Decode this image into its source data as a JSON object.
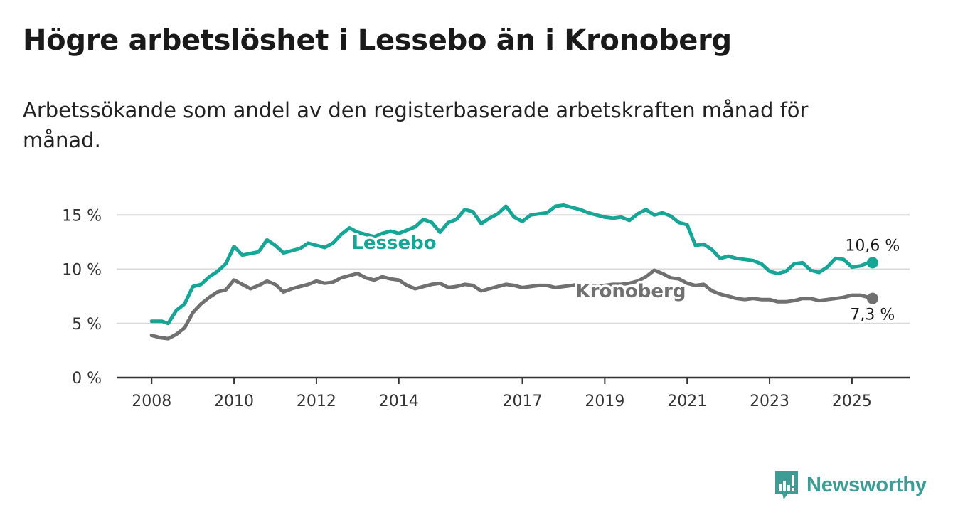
{
  "header": {
    "title": "Högre arbetslöshet i Lessebo än i Kronoberg",
    "subtitle": "Arbetssökande som andel av den registerbaserade arbetskraften månad för månad."
  },
  "brand": {
    "name": "Newsworthy",
    "logo_icon": "bar-chart-icon",
    "color": "#3d9c93"
  },
  "chart_data": {
    "type": "line",
    "y_ticks": [
      "0 %",
      "5 %",
      "10 %",
      "15 %"
    ],
    "y_tick_values": [
      0,
      5,
      10,
      15
    ],
    "ylim": [
      0,
      16
    ],
    "x_ticks": [
      "2008",
      "2010",
      "2012",
      "2014",
      "2017",
      "2019",
      "2021",
      "2023",
      "2025"
    ],
    "x_tick_values": [
      2008,
      2010,
      2012,
      2014,
      2017,
      2019,
      2021,
      2023,
      2025
    ],
    "xlim": [
      2007.15,
      2026.4
    ],
    "grid": true,
    "series": [
      {
        "name": "Lessebo",
        "color": "#17a596",
        "end_label": "10,6 %",
        "x": [
          2008.0,
          2008.25,
          2008.4,
          2008.6,
          2008.8,
          2009.0,
          2009.2,
          2009.4,
          2009.6,
          2009.8,
          2010.0,
          2010.2,
          2010.35,
          2010.6,
          2010.8,
          2011.0,
          2011.2,
          2011.4,
          2011.6,
          2011.8,
          2012.0,
          2012.2,
          2012.4,
          2012.6,
          2012.8,
          2013.0,
          2013.2,
          2013.4,
          2013.6,
          2013.8,
          2014.0,
          2014.2,
          2014.4,
          2014.6,
          2014.8,
          2015.0,
          2015.2,
          2015.4,
          2015.6,
          2015.8,
          2016.0,
          2016.2,
          2016.4,
          2016.6,
          2016.8,
          2017.0,
          2017.2,
          2017.4,
          2017.6,
          2017.8,
          2018.0,
          2018.2,
          2018.4,
          2018.6,
          2018.8,
          2019.0,
          2019.2,
          2019.4,
          2019.6,
          2019.8,
          2020.0,
          2020.2,
          2020.4,
          2020.6,
          2020.8,
          2021.0,
          2021.2,
          2021.4,
          2021.6,
          2021.8,
          2022.0,
          2022.2,
          2022.4,
          2022.6,
          2022.8,
          2023.0,
          2023.2,
          2023.4,
          2023.6,
          2023.8,
          2024.0,
          2024.2,
          2024.4,
          2024.6,
          2024.8,
          2025.0,
          2025.2,
          2025.4,
          2025.5
        ],
        "values": [
          5.2,
          5.2,
          5.0,
          6.2,
          6.8,
          8.4,
          8.6,
          9.3,
          9.8,
          10.5,
          12.1,
          11.3,
          11.4,
          11.6,
          12.7,
          12.2,
          11.5,
          11.7,
          11.9,
          12.4,
          12.2,
          12.0,
          12.4,
          13.2,
          13.8,
          13.4,
          13.2,
          13.0,
          13.3,
          13.5,
          13.3,
          13.6,
          13.9,
          14.6,
          14.3,
          13.4,
          14.3,
          14.6,
          15.5,
          15.3,
          14.2,
          14.7,
          15.1,
          15.8,
          14.8,
          14.4,
          15.0,
          15.1,
          15.2,
          15.8,
          15.9,
          15.7,
          15.5,
          15.2,
          15.0,
          14.8,
          14.7,
          14.8,
          14.5,
          15.1,
          15.5,
          15.0,
          15.2,
          14.9,
          14.3,
          14.1,
          12.2,
          12.3,
          11.8,
          11.0,
          11.2,
          11.0,
          10.9,
          10.8,
          10.5,
          9.8,
          9.6,
          9.8,
          10.5,
          10.6,
          9.9,
          9.7,
          10.2,
          11.0,
          10.9,
          10.2,
          10.3,
          10.6,
          10.6
        ]
      },
      {
        "name": "Kronoberg",
        "color": "#707070",
        "end_label": "7,3 %",
        "x": [
          2008.0,
          2008.2,
          2008.4,
          2008.6,
          2008.8,
          2009.0,
          2009.2,
          2009.4,
          2009.6,
          2009.8,
          2010.0,
          2010.2,
          2010.4,
          2010.6,
          2010.8,
          2011.0,
          2011.2,
          2011.4,
          2011.6,
          2011.8,
          2012.0,
          2012.2,
          2012.4,
          2012.6,
          2012.8,
          2013.0,
          2013.2,
          2013.4,
          2013.6,
          2013.8,
          2014.0,
          2014.2,
          2014.4,
          2014.6,
          2014.8,
          2015.0,
          2015.2,
          2015.4,
          2015.6,
          2015.8,
          2016.0,
          2016.2,
          2016.4,
          2016.6,
          2016.8,
          2017.0,
          2017.2,
          2017.4,
          2017.6,
          2017.8,
          2018.0,
          2018.2,
          2018.4,
          2018.6,
          2018.8,
          2019.0,
          2019.2,
          2019.4,
          2019.6,
          2019.8,
          2020.0,
          2020.2,
          2020.4,
          2020.6,
          2020.8,
          2021.0,
          2021.2,
          2021.4,
          2021.6,
          2021.8,
          2022.0,
          2022.2,
          2022.4,
          2022.6,
          2022.8,
          2023.0,
          2023.2,
          2023.4,
          2023.6,
          2023.8,
          2024.0,
          2024.2,
          2024.4,
          2024.6,
          2024.8,
          2025.0,
          2025.2,
          2025.4,
          2025.5
        ],
        "values": [
          3.9,
          3.7,
          3.6,
          4.0,
          4.6,
          6.0,
          6.8,
          7.4,
          7.9,
          8.1,
          9.0,
          8.6,
          8.2,
          8.5,
          8.9,
          8.6,
          7.9,
          8.2,
          8.4,
          8.6,
          8.9,
          8.7,
          8.8,
          9.2,
          9.4,
          9.6,
          9.2,
          9.0,
          9.3,
          9.1,
          9.0,
          8.5,
          8.2,
          8.4,
          8.6,
          8.7,
          8.3,
          8.4,
          8.6,
          8.5,
          8.0,
          8.2,
          8.4,
          8.6,
          8.5,
          8.3,
          8.4,
          8.5,
          8.5,
          8.3,
          8.4,
          8.5,
          8.6,
          8.5,
          8.4,
          8.5,
          8.6,
          8.6,
          8.7,
          8.9,
          9.3,
          9.9,
          9.6,
          9.2,
          9.1,
          8.7,
          8.5,
          8.6,
          8.0,
          7.7,
          7.5,
          7.3,
          7.2,
          7.3,
          7.2,
          7.2,
          7.0,
          7.0,
          7.1,
          7.3,
          7.3,
          7.1,
          7.2,
          7.3,
          7.4,
          7.6,
          7.6,
          7.4,
          7.3
        ]
      }
    ]
  }
}
